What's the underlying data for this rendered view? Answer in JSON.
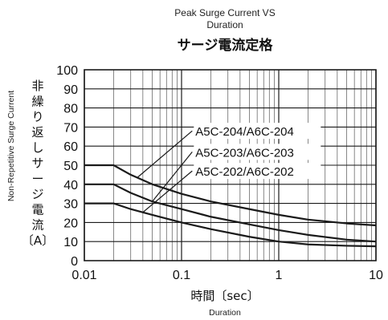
{
  "chart_data": {
    "type": "line",
    "title_en_line1": "Peak Surge Current VS",
    "title_en_line2": "Duration",
    "title_jp": "サージ電流定格",
    "ylabel_en": "Non-Repetitive Surge Current",
    "ylabel_jp": [
      "非",
      "繰",
      "り",
      "返",
      "し",
      "サ",
      "ー",
      "ジ",
      "電",
      "流",
      "〔A〕"
    ],
    "xlabel_jp": "時間〔sec〕",
    "xlabel_en": "Duration",
    "x_scale": "log",
    "xlim": [
      0.01,
      10
    ],
    "ylim": [
      0,
      100
    ],
    "grid": true,
    "x_ticks": [
      0.01,
      0.1,
      1,
      10
    ],
    "x_tick_labels": [
      "0.01",
      "0.1",
      "1",
      "10"
    ],
    "y_ticks": [
      0,
      10,
      20,
      30,
      40,
      50,
      60,
      70,
      80,
      90,
      100
    ],
    "y_tick_labels": [
      "0",
      "10",
      "20",
      "30",
      "40",
      "50",
      "60",
      "70",
      "80",
      "90",
      "100"
    ],
    "series": [
      {
        "name": "A5C-204/A6C-204",
        "points": [
          [
            0.01,
            50
          ],
          [
            0.02,
            50
          ],
          [
            0.03,
            45
          ],
          [
            0.05,
            40
          ],
          [
            0.1,
            35
          ],
          [
            0.2,
            31
          ],
          [
            0.5,
            27
          ],
          [
            1,
            24
          ],
          [
            2,
            21.5
          ],
          [
            5,
            19.5
          ],
          [
            10,
            18.5
          ]
        ]
      },
      {
        "name": "A5C-203/A6C-203",
        "points": [
          [
            0.01,
            40
          ],
          [
            0.02,
            40
          ],
          [
            0.03,
            35.5
          ],
          [
            0.05,
            31
          ],
          [
            0.1,
            27
          ],
          [
            0.2,
            23
          ],
          [
            0.5,
            19
          ],
          [
            1,
            16
          ],
          [
            2,
            13.5
          ],
          [
            5,
            11
          ],
          [
            10,
            10
          ]
        ]
      },
      {
        "name": "A5C-202/A6C-202",
        "points": [
          [
            0.01,
            30
          ],
          [
            0.02,
            30
          ],
          [
            0.03,
            27
          ],
          [
            0.05,
            24
          ],
          [
            0.1,
            20
          ],
          [
            0.2,
            16.5
          ],
          [
            0.5,
            12.5
          ],
          [
            1,
            10
          ],
          [
            2,
            8.5
          ],
          [
            5,
            7.8
          ],
          [
            10,
            7.5
          ]
        ]
      }
    ],
    "legend_labels": [
      "A5C-204/A6C-204",
      "A5C-203/A6C-203",
      "A5C-202/A6C-202"
    ]
  }
}
